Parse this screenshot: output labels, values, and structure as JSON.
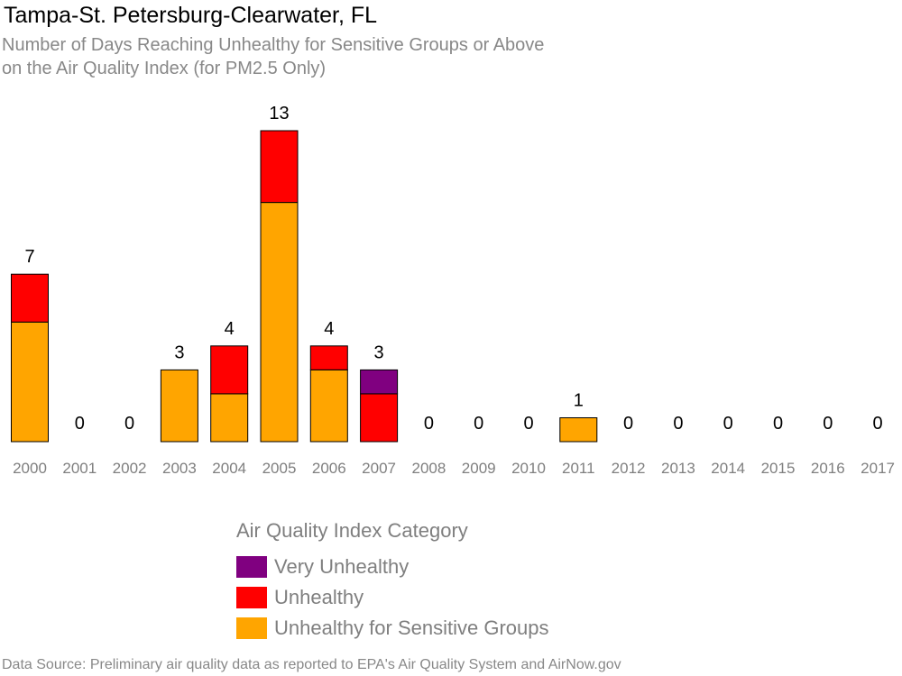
{
  "title": "Tampa-St. Petersburg-Clearwater, FL",
  "subtitle_lines": [
    "Number of Days Reaching Unhealthy for Sensitive Groups or Above",
    "on the Air Quality Index (for PM2.5 Only)"
  ],
  "source": "Data Source: Preliminary air quality data as reported to EPA's Air Quality System and AirNow.gov",
  "chart_data": {
    "type": "bar",
    "stacked": true,
    "categories": [
      "2000",
      "2001",
      "2002",
      "2003",
      "2004",
      "2005",
      "2006",
      "2007",
      "2008",
      "2009",
      "2010",
      "2011",
      "2012",
      "2013",
      "2014",
      "2015",
      "2016",
      "2017"
    ],
    "series": [
      {
        "name": "Unhealthy for Sensitive Groups",
        "color": "#FFA500",
        "values": [
          5,
          0,
          0,
          3,
          2,
          10,
          3,
          0,
          0,
          0,
          0,
          1,
          0,
          0,
          0,
          0,
          0,
          0
        ]
      },
      {
        "name": "Unhealthy",
        "color": "#FF0000",
        "values": [
          2,
          0,
          0,
          0,
          2,
          3,
          1,
          2,
          0,
          0,
          0,
          0,
          0,
          0,
          0,
          0,
          0,
          0
        ]
      },
      {
        "name": "Very Unhealthy",
        "color": "#800080",
        "values": [
          0,
          0,
          0,
          0,
          0,
          0,
          0,
          1,
          0,
          0,
          0,
          0,
          0,
          0,
          0,
          0,
          0,
          0
        ]
      }
    ],
    "totals": [
      "7",
      "0",
      "0",
      "3",
      "4",
      "13",
      "4",
      "3",
      "0",
      "0",
      "0",
      "1",
      "0",
      "0",
      "0",
      "0",
      "0",
      "0"
    ],
    "ylim": [
      0,
      13
    ],
    "grid": false,
    "legend": {
      "title": "Air Quality Index Category",
      "placement": "bottom",
      "items": [
        {
          "label": "Very Unhealthy",
          "color": "#800080"
        },
        {
          "label": "Unhealthy",
          "color": "#FF0000"
        },
        {
          "label": "Unhealthy for Sensitive Groups",
          "color": "#FFA500"
        }
      ]
    }
  }
}
